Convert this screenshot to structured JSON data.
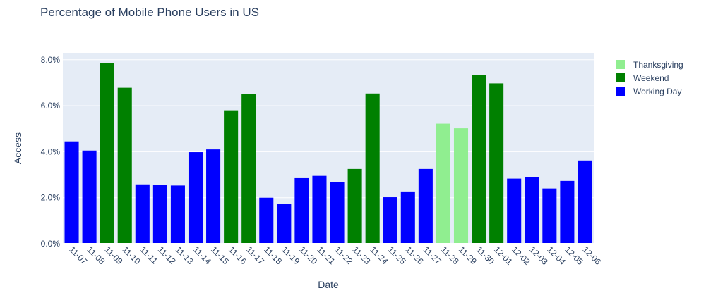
{
  "chart_data": {
    "type": "bar",
    "title": "Percentage of Mobile Phone Users in US",
    "xlabel": "Date",
    "ylabel": "Access",
    "ylim": [
      0,
      8.3
    ],
    "yticks": [
      0,
      2,
      4,
      6,
      8
    ],
    "ytick_labels": [
      "0.0%",
      "2.0%",
      "4.0%",
      "6.0%",
      "8.0%"
    ],
    "categories": [
      "11-07",
      "11-08",
      "11-09",
      "11-10",
      "11-11",
      "11-12",
      "11-13",
      "11-14",
      "11-15",
      "11-16",
      "11-17",
      "11-18",
      "11-19",
      "11-20",
      "11-21",
      "11-22",
      "11-23",
      "11-24",
      "11-25",
      "11-26",
      "11-27",
      "11-28",
      "11-29",
      "11-30",
      "12-01",
      "12-02",
      "12-03",
      "12-04",
      "12-05",
      "12-06"
    ],
    "values": [
      4.45,
      4.05,
      7.85,
      6.78,
      2.58,
      2.55,
      2.53,
      3.98,
      4.1,
      5.8,
      6.52,
      2.0,
      1.72,
      2.85,
      2.95,
      2.68,
      3.25,
      6.53,
      2.02,
      2.27,
      3.25,
      5.22,
      5.02,
      7.33,
      6.97,
      2.83,
      2.9,
      2.4,
      2.73,
      3.62
    ],
    "groups": [
      "Working Day",
      "Working Day",
      "Weekend",
      "Weekend",
      "Working Day",
      "Working Day",
      "Working Day",
      "Working Day",
      "Working Day",
      "Weekend",
      "Weekend",
      "Working Day",
      "Working Day",
      "Working Day",
      "Working Day",
      "Working Day",
      "Weekend",
      "Weekend",
      "Working Day",
      "Working Day",
      "Working Day",
      "Thanksgiving",
      "Thanksgiving",
      "Weekend",
      "Weekend",
      "Working Day",
      "Working Day",
      "Working Day",
      "Working Day",
      "Working Day"
    ],
    "legend": [
      {
        "name": "Thanksgiving",
        "color": "#90ee90"
      },
      {
        "name": "Weekend",
        "color": "#008000"
      },
      {
        "name": "Working Day",
        "color": "#0000ff"
      }
    ],
    "legend_position": "top-right",
    "grid": true
  },
  "colors": {
    "plot_bg": "#e5ecf6",
    "grid": "#ffffff",
    "text": "#2a3f5f"
  }
}
